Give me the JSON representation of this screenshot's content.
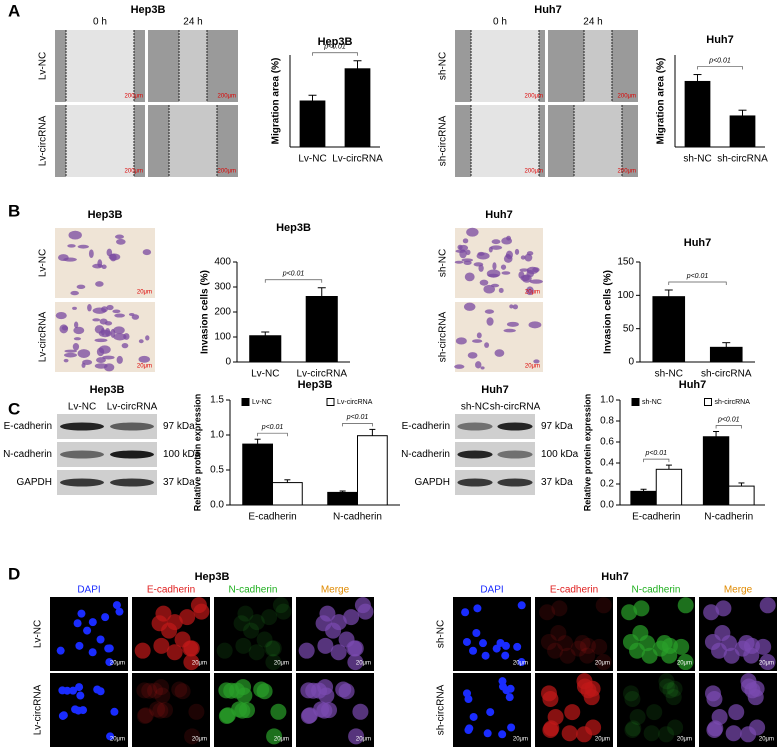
{
  "figure": {
    "panel_labels": [
      "A",
      "B",
      "C",
      "D"
    ],
    "scratch": [
      {
        "title": "Hep3B",
        "times": [
          "0 h",
          "24 h"
        ],
        "rows": [
          "Lv-NC",
          "Lv-circRNA"
        ],
        "scale": "200μm"
      },
      {
        "title": "Huh7",
        "times": [
          "0 h",
          "24 h"
        ],
        "rows": [
          "sh-NC",
          "sh-circRNA"
        ],
        "scale": "200μm"
      }
    ],
    "transwell": [
      {
        "title": "Hep3B",
        "rows": [
          "Lv-NC",
          "Lv-circRNA"
        ],
        "scale": "20μm"
      },
      {
        "title": "Huh7",
        "rows": [
          "sh-NC",
          "sh-circRNA"
        ],
        "scale": "20μm"
      }
    ],
    "western": [
      {
        "title": "Hep3B",
        "lanes": [
          "Lv-NC",
          "Lv-circRNA"
        ],
        "proteins": [
          "E-cadherin",
          "N-cadherin",
          "GAPDH"
        ],
        "sizes": [
          "97 kDa",
          "100 kDa",
          "37 kDa"
        ]
      },
      {
        "title": "Huh7",
        "lanes": [
          "sh-NC",
          "sh-circRNA"
        ],
        "proteins": [
          "E-cadherin",
          "N-cadherin",
          "GAPDH"
        ],
        "sizes": [
          "97 kDa",
          "100 kDa",
          "37 kDa"
        ]
      }
    ],
    "immuno": [
      {
        "title": "Hep3B",
        "channels": [
          "DAPI",
          "E-cadherin",
          "N-cadherin",
          "Merge"
        ],
        "rows": [
          "Lv-NC",
          "Lv-circRNA"
        ],
        "scale": "20μm"
      },
      {
        "title": "Huh7",
        "channels": [
          "DAPI",
          "E-cadherin",
          "N-cadherin",
          "Merge"
        ],
        "rows": [
          "sh-NC",
          "sh-circRNA"
        ],
        "scale": "20μm"
      }
    ]
  },
  "chart_data": [
    {
      "type": "bar",
      "title": "Hep3B",
      "ylabel": "Migration area (%)",
      "categories": [
        "Lv-NC",
        "Lv-circRNA"
      ],
      "values": [
        40,
        68
      ],
      "errors": [
        5,
        7
      ],
      "color": "#000000",
      "ylim": [
        0,
        80
      ],
      "annotations": [
        "p<0.01"
      ]
    },
    {
      "type": "bar",
      "title": "Huh7",
      "ylabel": "Migration area (%)",
      "categories": [
        "sh-NC",
        "sh-circRNA"
      ],
      "values": [
        57,
        27
      ],
      "errors": [
        6,
        5
      ],
      "color": "#000000",
      "ylim": [
        0,
        80
      ],
      "annotations": [
        "p<0.01"
      ]
    },
    {
      "type": "bar",
      "title": "Hep3B",
      "ylabel": "Invasion cells (%)",
      "categories": [
        "Lv-NC",
        "Lv-circRNA"
      ],
      "values": [
        105,
        262
      ],
      "errors": [
        15,
        35
      ],
      "color": "#000000",
      "ylim": [
        0,
        400
      ],
      "yticks": [
        0,
        100,
        200,
        300,
        400
      ],
      "annotations": [
        "p<0.01"
      ]
    },
    {
      "type": "bar",
      "title": "Huh7",
      "ylabel": "Invasion cells (%)",
      "categories": [
        "sh-NC",
        "sh-circRNA"
      ],
      "values": [
        98,
        22
      ],
      "errors": [
        10,
        7
      ],
      "color": "#000000",
      "ylim": [
        0,
        150
      ],
      "yticks": [
        0,
        50,
        100,
        150
      ],
      "annotations": [
        "p<0.01"
      ]
    },
    {
      "type": "bar",
      "title": "Hep3B",
      "ylabel": "Relative protein expression",
      "categories": [
        "E-cadherin",
        "N-cadherin"
      ],
      "series": [
        {
          "name": "Lv-NC",
          "color": "#000000",
          "values": [
            0.87,
            0.18
          ],
          "errors": [
            0.07,
            0.02
          ]
        },
        {
          "name": "Lv-circRNA",
          "color": "#ffffff",
          "values": [
            0.32,
            0.99
          ],
          "errors": [
            0.04,
            0.09
          ]
        }
      ],
      "ylim": [
        0,
        1.5
      ],
      "yticks": [
        {
          "value": 0,
          "label": "0.0"
        },
        0.5,
        {
          "value": 1,
          "label": "1.0"
        },
        1.5
      ],
      "annotations": [
        "p<0.01",
        "p<0.01"
      ]
    },
    {
      "type": "bar",
      "title": "Huh7",
      "ylabel": "Relative protein expression",
      "categories": [
        "E-cadherin",
        "N-cadherin"
      ],
      "series": [
        {
          "name": "sh-NC",
          "color": "#000000",
          "values": [
            0.13,
            0.65
          ],
          "errors": [
            0.02,
            0.05
          ]
        },
        {
          "name": "sh-circRNA",
          "color": "#ffffff",
          "values": [
            0.34,
            0.18
          ],
          "errors": [
            0.04,
            0.03
          ]
        }
      ],
      "ylim": [
        0,
        1
      ],
      "yticks": [
        {
          "value": 0,
          "label": "0.0"
        },
        0.2,
        0.4,
        0.6,
        0.8,
        {
          "value": 1,
          "label": "1.0"
        }
      ],
      "annotations": [
        "p<0.01",
        "p<0.01"
      ]
    }
  ]
}
